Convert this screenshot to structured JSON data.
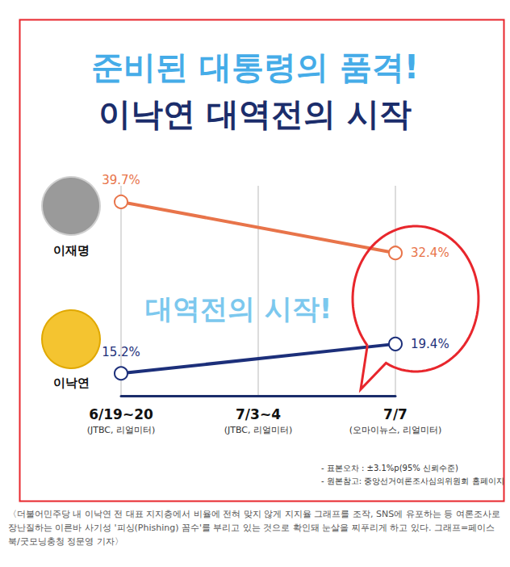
{
  "chart_data": {
    "type": "line",
    "title": "준비된 대통령의 품격!",
    "subtitle": "이낙연 대역전의 시작",
    "annotation": "대역전의 시작!",
    "categories": [
      "6/19~20",
      "7/3~4",
      "7/7"
    ],
    "category_notes": [
      "(JTBC, 리얼미터)",
      "(JTBC, 리얼미터)",
      "(오마이뉴스, 리얼미터)"
    ],
    "series": [
      {
        "name": "이재명",
        "color": "#e8744a",
        "values": [
          39.7,
          null,
          32.4
        ],
        "value_labels": [
          "39.7%",
          null,
          "32.4%"
        ]
      },
      {
        "name": "이낙연",
        "color": "#1c2f7a",
        "values": [
          15.2,
          null,
          19.4
        ],
        "value_labels": [
          "15.2%",
          null,
          "19.4%"
        ]
      }
    ],
    "ylim": [
      12,
      42
    ],
    "grid": true,
    "tick_labels": "x",
    "data_labels": true,
    "marker": "open_circle",
    "notes": [
      "- 표본오차 : ±3.1%p(95% 신뢰수준)",
      "- 원본참고: 중앙선거여론조사심의위원회 홈페이지"
    ]
  },
  "caption": "〈더불어민주당 내 이낙연 전 대표 지지층에서 비율에 전혀 맞지 않게 지지율 그래프를 조작, SNS에 유포하는 등 여론조사로 장난질하는 이른바 사기성 '피싱(Phishing) 꼼수'를 부리고 있는 것으로 확인돼 눈살을 찌푸리게 하고 있다. 그래프=페이스북/굿모닝충청 정문영 기자〉"
}
